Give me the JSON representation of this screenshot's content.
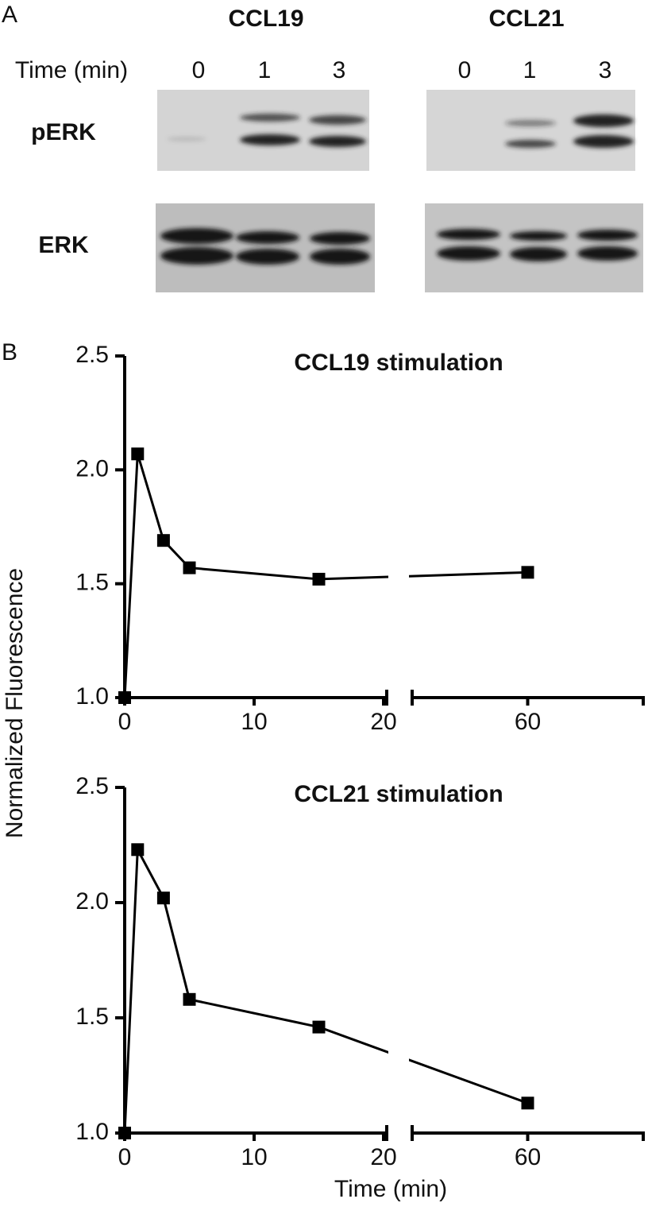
{
  "panel_a": {
    "label": "A",
    "groups": [
      {
        "name": "CCL19",
        "lanes": [
          "0",
          "1",
          "3"
        ]
      },
      {
        "name": "CCL21",
        "lanes": [
          "0",
          "1",
          "3"
        ]
      }
    ],
    "time_label": "Time (min)",
    "rows": [
      "pERK",
      "ERK"
    ]
  },
  "panel_b": {
    "label": "B",
    "ylabel": "Normalized Fluorescence",
    "xlabel": "Time (min)"
  },
  "chart_data": [
    {
      "type": "line",
      "title": "CCL19 stimulation",
      "x": [
        0,
        1,
        3,
        5,
        15,
        60
      ],
      "values": [
        1.0,
        2.07,
        1.69,
        1.57,
        1.52,
        1.55
      ],
      "color": "#000000",
      "xlim": [
        0,
        69
      ],
      "xbreak": [
        20,
        51
      ],
      "xticks": [
        0,
        10,
        20,
        60
      ],
      "ylim": [
        1.0,
        2.5
      ],
      "yticks": [
        {
          "value": 1.0,
          "label": "1.0"
        },
        1.5,
        {
          "value": 2.0,
          "label": "2.0"
        },
        2.5
      ]
    },
    {
      "type": "line",
      "title": "CCL21 stimulation",
      "x": [
        0,
        1,
        3,
        5,
        15,
        60
      ],
      "values": [
        1.0,
        2.23,
        2.02,
        1.58,
        1.46,
        1.13
      ],
      "color": "#000000",
      "xlim": [
        0,
        69
      ],
      "xbreak": [
        20,
        51
      ],
      "xticks": [
        0,
        10,
        20,
        60
      ],
      "ylim": [
        1.0,
        2.5
      ],
      "yticks": [
        {
          "value": 1.0,
          "label": "1.0"
        },
        1.5,
        {
          "value": 2.0,
          "label": "2.0"
        },
        2.5
      ]
    }
  ]
}
